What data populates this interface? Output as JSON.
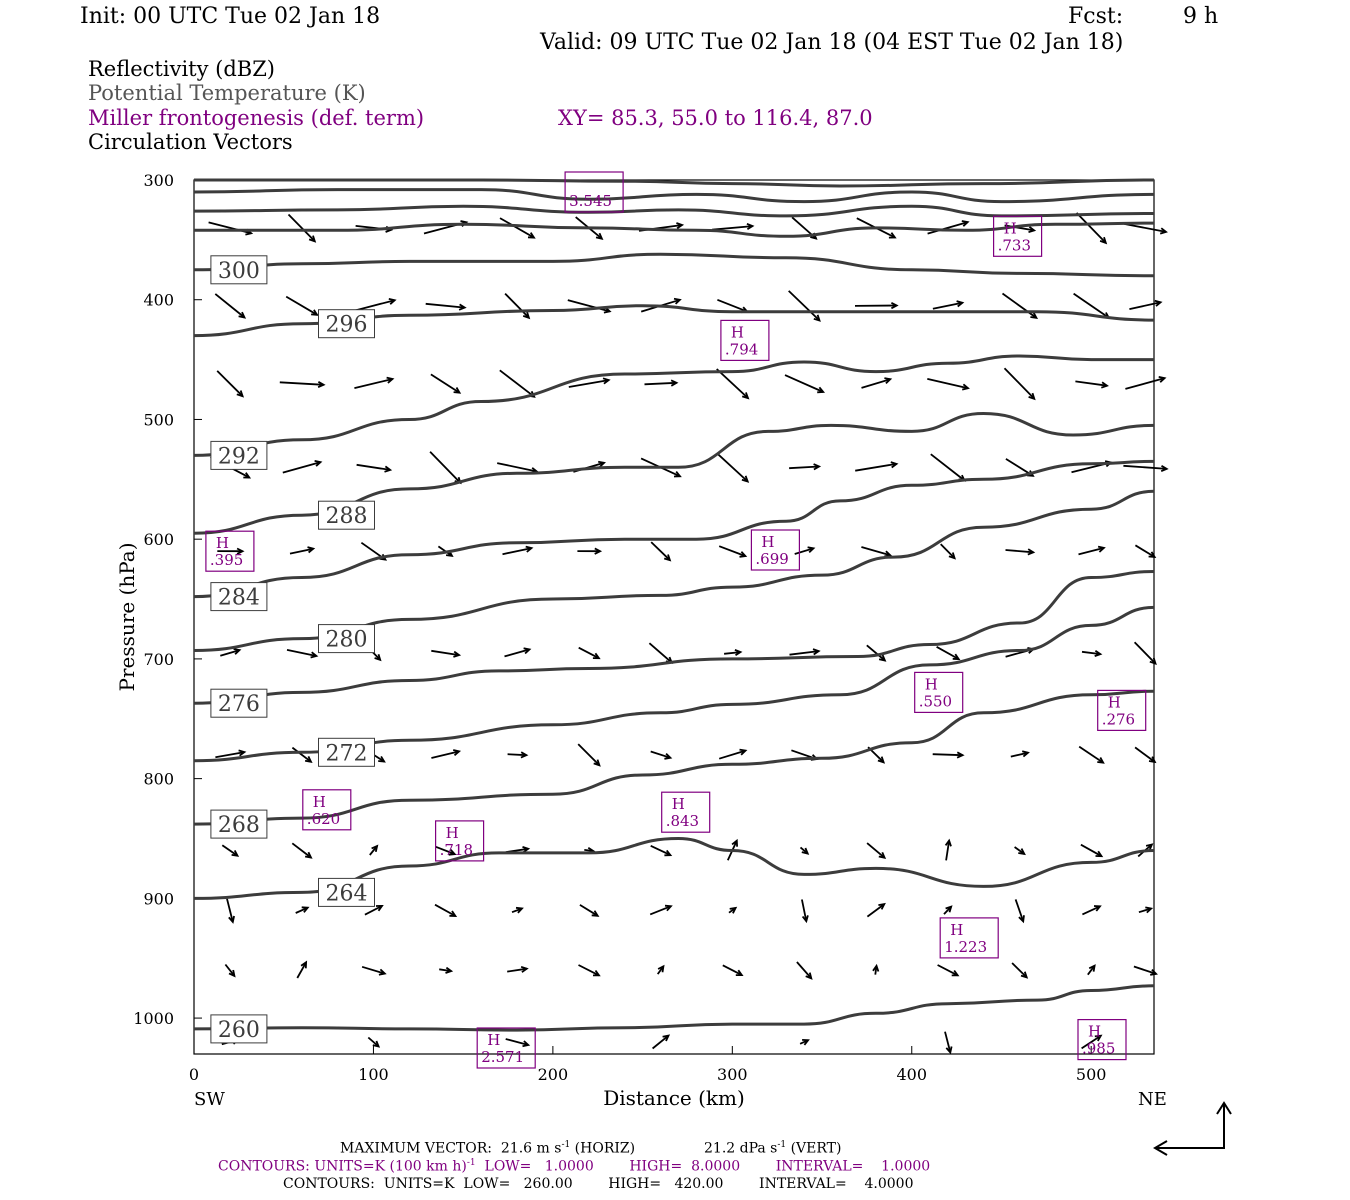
{
  "header": {
    "init": "Init: 00 UTC Tue 02 Jan 18",
    "fcst_label": "Fcst:",
    "fcst_value": "9 h",
    "valid": "Valid: 09 UTC Tue 02 Jan 18 (04 EST Tue 02 Jan 18)"
  },
  "legend": {
    "reflectivity": "Reflectivity (dBZ)",
    "theta": "Potential Temperature (K)",
    "frontogenesis": "Miller frontogenesis (def. term)",
    "xy": "XY=  85.3, 55.0 to 116.4, 87.0",
    "vectors": "Circulation Vectors"
  },
  "axes": {
    "ylabel": "Pressure (hPa)",
    "xlabel": "Distance (km)",
    "left_end": "SW",
    "right_end": "NE"
  },
  "footer": {
    "max_vector_label": "MAXIMUM VECTOR:",
    "max_vector_horiz": "21.6 m s",
    "horiz_suffix": "(HORIZ)",
    "max_vector_vert": "21.2 dPa s",
    "vert_suffix": "(VERT)",
    "contours1": "CONTOURS:  UNITS=K (100 km h)",
    "contours1_rest": "LOW=   1.0000        HIGH=  8.0000        INTERVAL=    1.0000",
    "contours2": "CONTOURS:  UNITS=K  LOW=   260.00        HIGH=   420.00        INTERVAL=    4.0000",
    "exp": "-1"
  },
  "colors": {
    "theta": "#3c3c3c",
    "fronto": "#800080",
    "vector": "#000000"
  },
  "chart_data": {
    "type": "line",
    "x_range": [
      0,
      535
    ],
    "y_range": [
      1030,
      300
    ],
    "y_scale": "linear",
    "xticks": [
      0,
      100,
      200,
      300,
      400,
      500
    ],
    "yticks": [
      300,
      400,
      500,
      600,
      700,
      800,
      900,
      1000
    ],
    "theta_contours": [
      {
        "label": "260",
        "points": [
          [
            0,
            1009
          ],
          [
            60,
            1008
          ],
          [
            120,
            1009
          ],
          [
            180,
            1010
          ],
          [
            240,
            1008
          ],
          [
            300,
            1005
          ],
          [
            340,
            1005
          ],
          [
            380,
            996
          ],
          [
            420,
            988
          ],
          [
            470,
            985
          ],
          [
            500,
            977
          ],
          [
            535,
            973
          ]
        ]
      },
      {
        "label": "264",
        "points": [
          [
            0,
            900
          ],
          [
            60,
            895
          ],
          [
            120,
            873
          ],
          [
            170,
            862
          ],
          [
            220,
            862
          ],
          [
            270,
            850
          ],
          [
            300,
            860
          ],
          [
            340,
            880
          ],
          [
            380,
            875
          ],
          [
            440,
            890
          ],
          [
            500,
            870
          ],
          [
            535,
            860
          ]
        ]
      },
      {
        "label": "268",
        "points": [
          [
            0,
            838
          ],
          [
            60,
            833
          ],
          [
            120,
            818
          ],
          [
            200,
            813
          ],
          [
            250,
            797
          ],
          [
            300,
            788
          ],
          [
            350,
            783
          ],
          [
            400,
            770
          ],
          [
            440,
            745
          ],
          [
            500,
            730
          ],
          [
            535,
            727
          ]
        ]
      },
      {
        "label": "272",
        "points": [
          [
            0,
            785
          ],
          [
            60,
            778
          ],
          [
            120,
            768
          ],
          [
            200,
            755
          ],
          [
            260,
            745
          ],
          [
            300,
            738
          ],
          [
            360,
            730
          ],
          [
            410,
            705
          ],
          [
            460,
            693
          ],
          [
            500,
            672
          ],
          [
            535,
            657
          ]
        ]
      },
      {
        "label": "276",
        "points": [
          [
            0,
            737
          ],
          [
            60,
            728
          ],
          [
            120,
            718
          ],
          [
            170,
            710
          ],
          [
            220,
            708
          ],
          [
            300,
            700
          ],
          [
            370,
            698
          ],
          [
            410,
            688
          ],
          [
            460,
            670
          ],
          [
            500,
            632
          ],
          [
            535,
            627
          ]
        ]
      },
      {
        "label": "280",
        "points": [
          [
            0,
            693
          ],
          [
            60,
            683
          ],
          [
            120,
            667
          ],
          [
            200,
            650
          ],
          [
            260,
            647
          ],
          [
            300,
            640
          ],
          [
            350,
            630
          ],
          [
            390,
            615
          ],
          [
            440,
            590
          ],
          [
            500,
            575
          ],
          [
            535,
            560
          ]
        ]
      },
      {
        "label": "284",
        "points": [
          [
            0,
            648
          ],
          [
            60,
            632
          ],
          [
            120,
            613
          ],
          [
            180,
            603
          ],
          [
            240,
            600
          ],
          [
            280,
            600
          ],
          [
            330,
            585
          ],
          [
            360,
            568
          ],
          [
            400,
            555
          ],
          [
            440,
            550
          ],
          [
            500,
            537
          ],
          [
            535,
            535
          ]
        ]
      },
      {
        "label": "288",
        "points": [
          [
            0,
            595
          ],
          [
            60,
            580
          ],
          [
            120,
            558
          ],
          [
            180,
            545
          ],
          [
            240,
            540
          ],
          [
            270,
            540
          ],
          [
            320,
            510
          ],
          [
            355,
            505
          ],
          [
            400,
            510
          ],
          [
            440,
            495
          ],
          [
            490,
            513
          ],
          [
            535,
            505
          ]
        ]
      },
      {
        "label": "292",
        "points": [
          [
            0,
            530
          ],
          [
            60,
            517
          ],
          [
            120,
            500
          ],
          [
            160,
            485
          ],
          [
            240,
            462
          ],
          [
            300,
            460
          ],
          [
            340,
            452
          ],
          [
            380,
            460
          ],
          [
            420,
            453
          ],
          [
            460,
            447
          ],
          [
            500,
            450
          ],
          [
            535,
            450
          ]
        ]
      },
      {
        "label": "296",
        "points": [
          [
            0,
            430
          ],
          [
            60,
            420
          ],
          [
            120,
            413
          ],
          [
            200,
            409
          ],
          [
            250,
            405
          ],
          [
            300,
            410
          ],
          [
            380,
            410
          ],
          [
            420,
            410
          ],
          [
            470,
            410
          ],
          [
            535,
            417
          ]
        ]
      },
      {
        "label": "300",
        "points": [
          [
            0,
            375
          ],
          [
            60,
            370
          ],
          [
            120,
            368
          ],
          [
            200,
            368
          ],
          [
            260,
            362
          ],
          [
            330,
            365
          ],
          [
            400,
            375
          ],
          [
            460,
            378
          ],
          [
            535,
            380
          ]
        ]
      },
      {
        "label": "",
        "points": [
          [
            0,
            342
          ],
          [
            80,
            342
          ],
          [
            150,
            337
          ],
          [
            220,
            340
          ],
          [
            280,
            342
          ],
          [
            330,
            347
          ],
          [
            380,
            340
          ],
          [
            430,
            342
          ],
          [
            480,
            337
          ],
          [
            535,
            336
          ]
        ]
      },
      {
        "label": "",
        "points": [
          [
            0,
            326
          ],
          [
            80,
            325
          ],
          [
            150,
            322
          ],
          [
            220,
            327
          ],
          [
            270,
            325
          ],
          [
            330,
            330
          ],
          [
            400,
            322
          ],
          [
            450,
            330
          ],
          [
            535,
            328
          ]
        ]
      },
      {
        "label": "",
        "points": [
          [
            0,
            310
          ],
          [
            80,
            308
          ],
          [
            160,
            308
          ],
          [
            220,
            316
          ],
          [
            280,
            312
          ],
          [
            340,
            318
          ],
          [
            400,
            310
          ],
          [
            450,
            318
          ],
          [
            535,
            312
          ]
        ]
      },
      {
        "label": "",
        "points": [
          [
            0,
            300
          ],
          [
            80,
            300
          ],
          [
            160,
            300
          ],
          [
            240,
            301
          ],
          [
            300,
            303
          ],
          [
            360,
            305
          ],
          [
            440,
            303
          ],
          [
            535,
            300
          ]
        ]
      }
    ],
    "frontogenesis_maxima": [
      {
        "label": "H",
        "value": ".395",
        "x": 20,
        "y": 610
      },
      {
        "label": "H",
        "value": ".620",
        "x": 74,
        "y": 826
      },
      {
        "label": "H",
        "value": ".718",
        "x": 148,
        "y": 852
      },
      {
        "label": "H",
        "value": ".843",
        "x": 274,
        "y": 828
      },
      {
        "label": "H",
        "value": ".699",
        "x": 324,
        "y": 609
      },
      {
        "label": "H",
        "value": ".794",
        "x": 307,
        "y": 434
      },
      {
        "label": "H",
        "value": ".550",
        "x": 415,
        "y": 728
      },
      {
        "label": "H",
        "value": "1.223",
        "x": 432,
        "y": 933
      },
      {
        "label": "H",
        "value": ".733",
        "x": 459,
        "y": 347
      },
      {
        "label": "H",
        "value": ".276",
        "x": 517,
        "y": 743
      },
      {
        "label": "H",
        "value": ".985",
        "x": 506,
        "y": 1018
      },
      {
        "label": "H",
        "value": "2.571",
        "x": 174,
        "y": 1025
      },
      {
        "label": "",
        "value": "3.545",
        "x": 223,
        "y": 310
      }
    ]
  }
}
